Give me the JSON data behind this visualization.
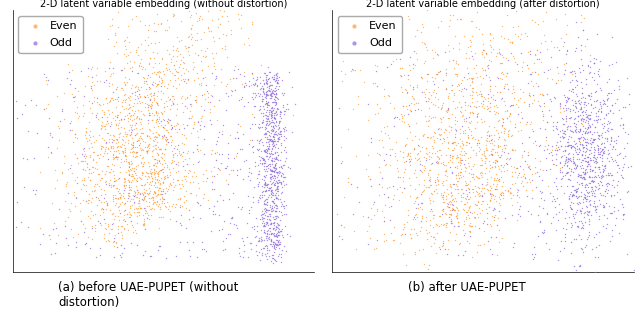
{
  "title_left": "2-D latent variable embedding (without distortion)",
  "title_right": "2-D latent variable embedding (after distortion)",
  "caption_left": "(a) before UAE-PUPET (without\ndistortion)",
  "caption_right": "(b) after UAE-PUPET",
  "color_even": "#FFA040",
  "color_odd": "#9370DB",
  "marker_size": 4,
  "alpha": 0.75,
  "bg_color": "#ffffff",
  "seed": 42
}
